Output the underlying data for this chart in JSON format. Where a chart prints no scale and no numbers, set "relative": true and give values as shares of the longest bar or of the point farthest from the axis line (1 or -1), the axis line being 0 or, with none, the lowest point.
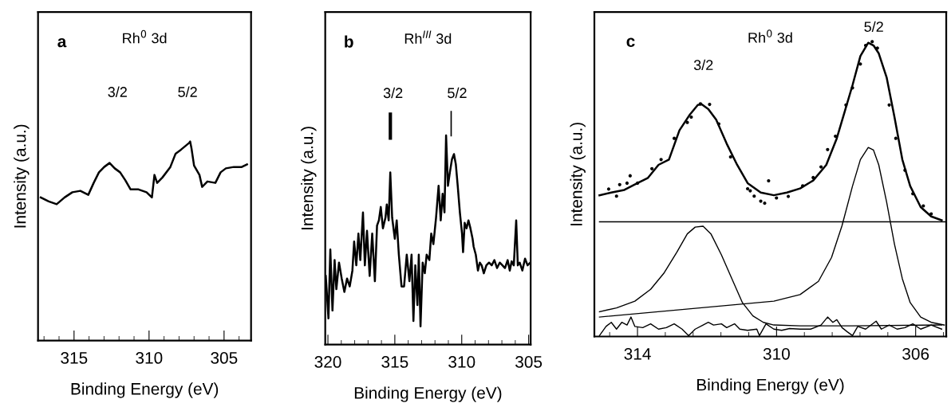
{
  "chart_data": [
    {
      "type": "line",
      "title": "Rh$^{0}$ 3d",
      "xlabel": "Binding Energy (eV)",
      "ylabel": "Intensity (a.u.)",
      "relative": true,
      "xlim": [
        317.4,
        303.2
      ],
      "xticks": [
        315,
        310,
        305
      ],
      "tick_labels": "x",
      "annotations": [
        "a",
        "3/2",
        "5/2"
      ],
      "series": [
        {
          "color": "#000000",
          "x": [
            317.22,
            316.69,
            316.16,
            315.63,
            315.11,
            314.58,
            314.05,
            313.69,
            313.34,
            312.99,
            312.63,
            312.29,
            311.93,
            311.58,
            311.23,
            310.7,
            310.17,
            309.81,
            309.64,
            309.46,
            309.11,
            308.58,
            308.23,
            307.87,
            307.34,
            307.26,
            307.17,
            307.0,
            306.64,
            306.46,
            306.11,
            305.58,
            305.23,
            304.88,
            304.35,
            303.82,
            303.47
          ],
          "values": [
            0.719,
            0.699,
            0.685,
            0.719,
            0.745,
            0.752,
            0.732,
            0.792,
            0.845,
            0.872,
            0.892,
            0.865,
            0.845,
            0.805,
            0.759,
            0.759,
            0.745,
            0.719,
            0.832,
            0.792,
            0.819,
            0.872,
            0.939,
            0.959,
            0.992,
            1.0,
            0.965,
            0.879,
            0.832,
            0.772,
            0.799,
            0.792,
            0.845,
            0.865,
            0.872,
            0.872,
            0.885
          ]
        }
      ]
    },
    {
      "type": "line",
      "title": "Rh$^{III}$ 3d",
      "xlabel": "Binding Energy (eV)",
      "ylabel": "Intensity (a.u.)",
      "relative": true,
      "xlim": [
        320.2,
        304.85
      ],
      "xticks": [
        320,
        315,
        310,
        305
      ],
      "tick_labels": "x",
      "annotations": [
        "b",
        "3/2",
        "5/2"
      ],
      "series": [
        {
          "color": "#000000",
          "x": [
            320.16,
            319.96,
            319.82,
            319.66,
            319.5,
            319.37,
            319.17,
            318.97,
            318.77,
            318.57,
            318.37,
            318.17,
            318.04,
            317.88,
            317.72,
            317.58,
            317.38,
            317.24,
            317.08,
            316.88,
            316.69,
            316.49,
            316.33,
            316.19,
            316.05,
            315.89,
            315.7,
            315.6,
            315.46,
            315.34,
            315.2,
            315.0,
            314.86,
            314.7,
            314.5,
            314.31,
            314.11,
            313.91,
            313.75,
            313.61,
            313.47,
            313.31,
            313.21,
            313.08,
            312.92,
            312.76,
            312.62,
            312.42,
            312.28,
            312.12,
            311.92,
            311.73,
            311.57,
            311.43,
            311.29,
            311.17,
            311.03,
            310.89,
            310.73,
            310.58,
            310.44,
            310.3,
            310.14,
            309.98,
            309.9,
            309.78,
            309.64,
            309.5,
            309.35,
            309.19,
            309.11,
            308.95,
            308.79,
            308.65,
            308.51,
            308.35,
            308.16,
            307.96,
            307.76,
            307.56,
            307.36,
            307.16,
            306.96,
            306.77,
            306.57,
            306.41,
            306.27,
            306.11,
            305.93,
            305.81,
            305.67,
            305.47,
            305.27,
            305.08,
            304.88
          ],
          "values": [
            0.328,
            0.125,
            0.455,
            0.163,
            0.404,
            0.265,
            0.392,
            0.316,
            0.252,
            0.316,
            0.278,
            0.354,
            0.493,
            0.379,
            0.531,
            0.404,
            0.632,
            0.379,
            0.544,
            0.328,
            0.531,
            0.303,
            0.569,
            0.594,
            0.658,
            0.556,
            0.607,
            0.67,
            0.594,
            0.823,
            0.607,
            0.506,
            0.594,
            0.43,
            0.278,
            0.278,
            0.43,
            0.303,
            0.43,
            0.113,
            0.379,
            0.189,
            0.43,
            0.087,
            0.392,
            0.341,
            0.43,
            0.404,
            0.531,
            0.48,
            0.607,
            0.759,
            0.594,
            0.721,
            0.632,
            1.0,
            0.759,
            0.823,
            0.886,
            0.911,
            0.861,
            0.759,
            0.632,
            0.531,
            0.442,
            0.582,
            0.556,
            0.594,
            0.556,
            0.506,
            0.468,
            0.43,
            0.354,
            0.392,
            0.379,
            0.341,
            0.379,
            0.392,
            0.379,
            0.404,
            0.366,
            0.392,
            0.379,
            0.366,
            0.404,
            0.354,
            0.398,
            0.379,
            0.594,
            0.379,
            0.392,
            0.354,
            0.411,
            0.379,
            0.392
          ]
        }
      ]
    },
    {
      "type": "line",
      "title": "Rh$^{0}$ 3d",
      "xlabel": "Binding Energy (eV)",
      "ylabel": "Intensity (a.u.)",
      "relative": true,
      "xlim": [
        315.24,
        305.12
      ],
      "xticks": [
        314,
        310,
        306
      ],
      "tick_labels": "x",
      "annotations": [
        "c",
        "3/2",
        "5/2"
      ],
      "series": [
        {
          "color": "#000000",
          "x": [
            315.093,
            314.754,
            314.377,
            314.0,
            313.698,
            313.396,
            313.095,
            312.793,
            312.491,
            312.265,
            312.152,
            311.963,
            311.737,
            311.435,
            311.134,
            310.832,
            310.455,
            310.078,
            309.701,
            309.324,
            308.947,
            308.57,
            308.268,
            308.042,
            307.816,
            307.589,
            307.363,
            307.212,
            307.061,
            306.835,
            306.609,
            306.383,
            306.157,
            305.855,
            305.553,
            305.251
          ],
          "values": [
            0.479,
            0.488,
            0.497,
            0.52,
            0.538,
            0.582,
            0.6,
            0.699,
            0.753,
            0.785,
            0.787,
            0.771,
            0.735,
            0.654,
            0.582,
            0.52,
            0.488,
            0.479,
            0.488,
            0.502,
            0.529,
            0.582,
            0.672,
            0.762,
            0.852,
            0.951,
            0.996,
            0.987,
            0.96,
            0.879,
            0.744,
            0.6,
            0.51,
            0.439,
            0.407,
            0.394
          ]
        },
        {
          "type": "scatter",
          "marker": "circle",
          "color": "#000000",
          "x": [
            314.829,
            314.603,
            314.512,
            314.301,
            314.211,
            314.0,
            313.585,
            313.321,
            312.944,
            312.567,
            312.454,
            312.19,
            311.926,
            311.662,
            311.322,
            310.832,
            310.757,
            310.644,
            310.455,
            310.342,
            310.229,
            310.003,
            309.663,
            309.248,
            308.947,
            308.721,
            308.532,
            308.306,
            308.004,
            307.816,
            307.589,
            307.438,
            307.25,
            307.099,
            306.76,
            306.571,
            306.307,
            306.081,
            305.779,
            305.553
          ],
          "values": [
            0.5,
            0.476,
            0.515,
            0.52,
            0.545,
            0.52,
            0.569,
            0.6,
            0.672,
            0.726,
            0.744,
            0.789,
            0.787,
            0.721,
            0.609,
            0.501,
            0.494,
            0.476,
            0.459,
            0.452,
            0.528,
            0.47,
            0.475,
            0.511,
            0.539,
            0.575,
            0.634,
            0.679,
            0.785,
            0.843,
            0.924,
            0.987,
            1.0,
            0.978,
            0.785,
            0.672,
            0.564,
            0.484,
            0.443,
            0.416
          ]
        },
        {
          "color": "#000000",
          "x": [
            315.093,
            305.138
          ],
          "values": [
            0.389,
            0.389
          ]
        },
        {
          "color": "#000000",
          "x": [
            315.093,
            314.603,
            314.075,
            313.622,
            313.245,
            312.868,
            312.567,
            312.34,
            312.114,
            311.888,
            311.586,
            311.285,
            310.983,
            310.681,
            310.38,
            310.078,
            309.324,
            307.816,
            305.251
          ],
          "values": [
            0.084,
            0.097,
            0.12,
            0.16,
            0.214,
            0.286,
            0.348,
            0.371,
            0.374,
            0.348,
            0.277,
            0.196,
            0.115,
            0.07,
            0.048,
            0.039,
            0.036,
            0.036,
            0.039
          ]
        },
        {
          "color": "#000000",
          "x": [
            315.093,
            310.078,
            309.324,
            308.796,
            308.419,
            308.117,
            307.816,
            307.589,
            307.363,
            307.212,
            307.061,
            306.835,
            306.609,
            306.383,
            306.157,
            305.855,
            305.553,
            305.176
          ],
          "values": [
            0.066,
            0.12,
            0.142,
            0.187,
            0.268,
            0.376,
            0.51,
            0.6,
            0.641,
            0.632,
            0.582,
            0.456,
            0.313,
            0.196,
            0.115,
            0.066,
            0.048,
            0.039
          ]
        },
        {
          "color": "#000000",
          "x": [
            315.093,
            314.905,
            314.754,
            314.603,
            314.452,
            314.301,
            314.188,
            314.075,
            313.849,
            313.622,
            313.396,
            313.17,
            312.944,
            312.717,
            312.529,
            312.34,
            312.114,
            311.963,
            311.813,
            311.586,
            311.435,
            311.209,
            311.058,
            310.832,
            310.568,
            310.493,
            310.304,
            310.078,
            309.852,
            309.626,
            309.324,
            309.022,
            308.721,
            308.532,
            308.381,
            308.268,
            308.117,
            307.966,
            307.816,
            307.665,
            307.438,
            307.137,
            306.986,
            306.76,
            306.534,
            306.307,
            306.081,
            305.855,
            305.553,
            305.251
          ],
          "values": [
            0.003,
            0.034,
            0.048,
            0.025,
            0.048,
            0.039,
            0.066,
            0.034,
            0.03,
            0.043,
            0.025,
            0.03,
            0.043,
            0.025,
            0.003,
            0.025,
            0.039,
            0.048,
            0.039,
            0.043,
            0.03,
            0.043,
            0.025,
            0.021,
            0.025,
            0.003,
            0.043,
            0.025,
            0.021,
            0.027,
            0.025,
            0.025,
            0.039,
            0.066,
            0.048,
            0.057,
            0.03,
            0.016,
            0.003,
            0.034,
            0.025,
            0.052,
            0.025,
            0.039,
            0.025,
            0.03,
            0.043,
            0.025,
            0.039,
            0.025
          ]
        }
      ]
    }
  ]
}
